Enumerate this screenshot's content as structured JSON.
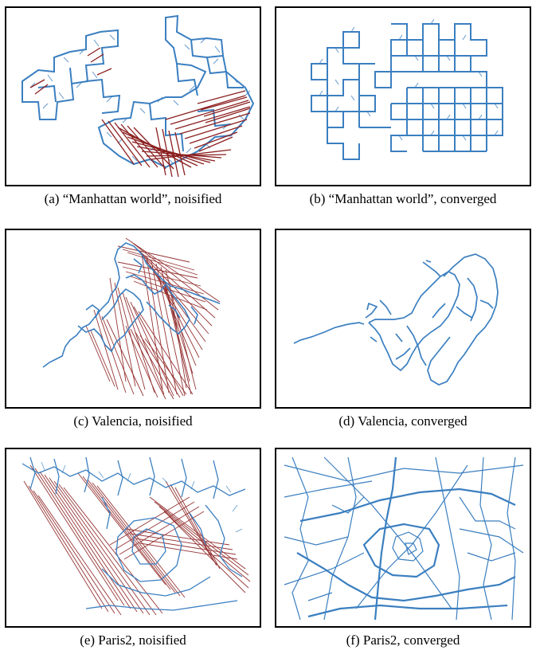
{
  "figure": {
    "panels": [
      {
        "id": "a",
        "caption": "(a) “Manhattan world”, noisified"
      },
      {
        "id": "b",
        "caption": "(b) “Manhattan world”, converged"
      },
      {
        "id": "c",
        "caption": "(c) Valencia, noisified"
      },
      {
        "id": "d",
        "caption": "(d) Valencia, converged"
      },
      {
        "id": "e",
        "caption": "(e) Paris2, noisified"
      },
      {
        "id": "f",
        "caption": "(f) Paris2, converged"
      }
    ]
  },
  "colors": {
    "trajectory": "#3b7fc0",
    "residual": "#8b1f1f",
    "frame": "#000000"
  }
}
